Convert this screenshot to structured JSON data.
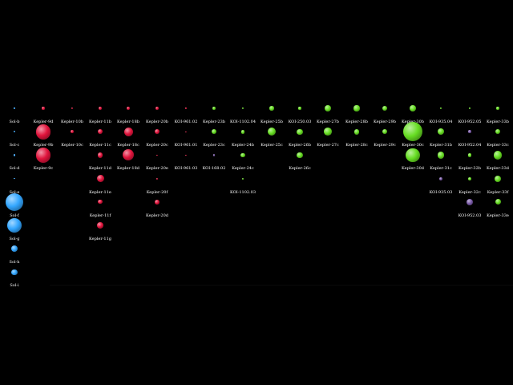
{
  "colors": {
    "background": "#000000",
    "solar": "#33a6ff",
    "red": "#e0143c",
    "green": "#66dd22",
    "purple": "#7a5aa8"
  },
  "systems": [
    {
      "planets": [
        {
          "name": "Sol-b",
          "r": 0.6,
          "color": "solar"
        },
        {
          "name": "Sol-c",
          "r": 1.2,
          "color": "solar"
        },
        {
          "name": "Sol-d",
          "r": 1.3,
          "color": "solar"
        },
        {
          "name": "Sol-e",
          "r": 0.7,
          "color": "solar"
        },
        {
          "name": "Sol-f",
          "r": 11.2,
          "color": "solar"
        },
        {
          "name": "Sol-g",
          "r": 9.4,
          "color": "solar"
        },
        {
          "name": "Sol-h",
          "r": 4.0,
          "color": "solar"
        },
        {
          "name": "Sol-i",
          "r": 3.9,
          "color": "solar"
        }
      ]
    },
    {
      "planets": [
        {
          "name": "Kepler-9d",
          "r": 1.6,
          "color": "red"
        },
        {
          "name": "Kepler-9b",
          "r": 9.4,
          "color": "red"
        },
        {
          "name": "Kepler-9c",
          "r": 9.2,
          "color": "red"
        }
      ]
    },
    {
      "planets": [
        {
          "name": "Kepler-10b",
          "r": 1.4,
          "color": "red"
        },
        {
          "name": "Kepler-10c",
          "r": 2.2,
          "color": "red"
        }
      ]
    },
    {
      "planets": [
        {
          "name": "Kepler-11b",
          "r": 2.0,
          "color": "red"
        },
        {
          "name": "Kepler-11c",
          "r": 3.2,
          "color": "red"
        },
        {
          "name": "Kepler-11d",
          "r": 3.4,
          "color": "red"
        },
        {
          "name": "Kepler-11e",
          "r": 4.5,
          "color": "red"
        },
        {
          "name": "Kepler-11f",
          "r": 2.6,
          "color": "red"
        },
        {
          "name": "Kepler-11g",
          "r": 3.7,
          "color": "red"
        }
      ]
    },
    {
      "planets": [
        {
          "name": "Kepler-18b",
          "r": 2.0,
          "color": "red"
        },
        {
          "name": "Kepler-18c",
          "r": 5.5,
          "color": "red"
        },
        {
          "name": "Kepler-18d",
          "r": 7.0,
          "color": "red"
        }
      ]
    },
    {
      "planets": [
        {
          "name": "Kepler-20b",
          "r": 1.9,
          "color": "red"
        },
        {
          "name": "Kepler-20c",
          "r": 3.1,
          "color": "red"
        },
        {
          "name": "Kepler-20e",
          "r": 0.9,
          "color": "red"
        },
        {
          "name": "Kepler-20f",
          "r": 1.0,
          "color": "red"
        },
        {
          "name": "Kepler-20d",
          "r": 2.8,
          "color": "red"
        }
      ]
    },
    {
      "planets": [
        {
          "name": "KOI-961.02",
          "r": 0.8,
          "color": "red"
        },
        {
          "name": "KOI-961.01",
          "r": 0.7,
          "color": "red"
        },
        {
          "name": "KOI-961.03",
          "r": 0.6,
          "color": "red"
        }
      ]
    },
    {
      "planets": [
        {
          "name": "Kepler-23b",
          "r": 1.8,
          "color": "green"
        },
        {
          "name": "Kepler-23c",
          "r": 3.2,
          "color": "green"
        },
        {
          "name": "KOI-168.02",
          "r": 1.4,
          "color": "purple"
        }
      ]
    },
    {
      "planets": [
        {
          "name": "KOI-1102.04",
          "r": 1.2,
          "color": "green"
        },
        {
          "name": "Kepler-24b",
          "r": 2.4,
          "color": "green"
        },
        {
          "name": "Kepler-24c",
          "r": 2.8,
          "color": "green"
        },
        {
          "name": "KOI-1102.03",
          "r": 1.1,
          "color": "green"
        }
      ]
    },
    {
      "planets": [
        {
          "name": "Kepler-25b",
          "r": 2.7,
          "color": "green"
        },
        {
          "name": "Kepler-25c",
          "r": 5.2,
          "color": "green"
        }
      ]
    },
    {
      "planets": [
        {
          "name": "KOI-250.03",
          "r": 1.6,
          "color": "green"
        },
        {
          "name": "Kepler-26b",
          "r": 3.6,
          "color": "green"
        },
        {
          "name": "Kepler-26c",
          "r": 3.6,
          "color": "green"
        }
      ]
    },
    {
      "planets": [
        {
          "name": "Kepler-27b",
          "r": 4.0,
          "color": "green"
        },
        {
          "name": "Kepler-27c",
          "r": 4.9,
          "color": "green"
        }
      ]
    },
    {
      "planets": [
        {
          "name": "Kepler-28b",
          "r": 3.6,
          "color": "green"
        },
        {
          "name": "Kepler-28c",
          "r": 3.4,
          "color": "green"
        }
      ]
    },
    {
      "planets": [
        {
          "name": "Kepler-29b",
          "r": 3.4,
          "color": "green"
        },
        {
          "name": "Kepler-29c",
          "r": 3.1,
          "color": "green"
        }
      ]
    },
    {
      "planets": [
        {
          "name": "Kepler-30b",
          "r": 3.9,
          "color": "green"
        },
        {
          "name": "Kepler-30c",
          "r": 12.3,
          "color": "green"
        },
        {
          "name": "Kepler-30d",
          "r": 8.8,
          "color": "green"
        }
      ]
    },
    {
      "planets": [
        {
          "name": "KOI-935.04",
          "r": 1.0,
          "color": "green"
        },
        {
          "name": "Kepler-31b",
          "r": 4.2,
          "color": "green"
        },
        {
          "name": "Kepler-31c",
          "r": 4.2,
          "color": "green"
        },
        {
          "name": "KOI-935.03",
          "r": 2.0,
          "color": "purple"
        }
      ]
    },
    {
      "planets": [
        {
          "name": "KOI-952.05",
          "r": 0.9,
          "color": "green"
        },
        {
          "name": "KOI-952.04",
          "r": 1.8,
          "color": "purple"
        },
        {
          "name": "Kepler-32b",
          "r": 2.2,
          "color": "green"
        },
        {
          "name": "Kepler-32c",
          "r": 2.0,
          "color": "green"
        },
        {
          "name": "KOI-952.03",
          "r": 4.0,
          "color": "purple"
        }
      ]
    },
    {
      "planets": [
        {
          "name": "Kepler-33b",
          "r": 1.7,
          "color": "green"
        },
        {
          "name": "Kepler-33c",
          "r": 3.2,
          "color": "green"
        },
        {
          "name": "Kepler-33d",
          "r": 5.4,
          "color": "green"
        },
        {
          "name": "Kepler-33f",
          "r": 4.0,
          "color": "green"
        },
        {
          "name": "Kepler-33e",
          "r": 3.5,
          "color": "green"
        }
      ]
    }
  ]
}
